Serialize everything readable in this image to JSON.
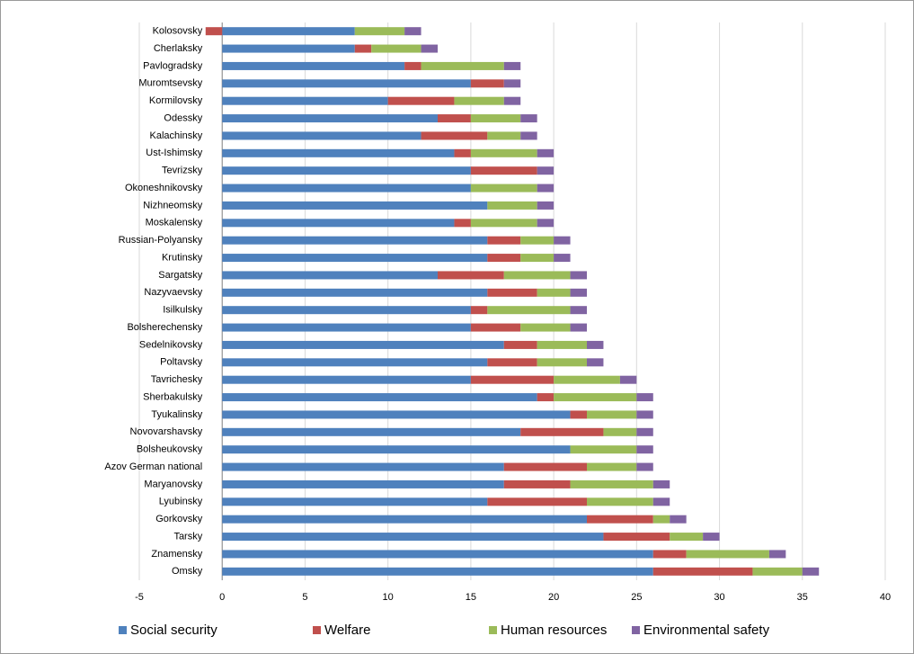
{
  "chart_data": {
    "type": "stacked-bar-horizontal",
    "categories": [
      "Kolosovsky",
      "Cherlaksky",
      "Pavlogradsky",
      "Muromtsevsky",
      "Kormilovsky",
      "Odessky",
      "Kalachinsky",
      "Ust-Ishimsky",
      "Tevrizsky",
      "Okoneshnikovsky",
      "Nizhneomsky",
      "Moskalensky",
      "Russian-Polyansky",
      "Krutinsky",
      "Sargatsky",
      "Nazyvaevsky",
      "Isilkulsky",
      "Bolsherechensky",
      "Sedelnikovsky",
      "Poltavsky",
      "Tavrichesky",
      "Sherbakulsky",
      "Tyukalinsky",
      "Novovarshavsky",
      "Bolsheukovsky",
      "Azov German national",
      "Maryanovsky",
      "Lyubinsky",
      "Gorkovsky",
      "Tarsky",
      "Znamensky",
      "Omsky"
    ],
    "series": [
      {
        "name": "Social security",
        "color": "#4f81bd",
        "values": [
          8,
          8,
          11,
          15,
          10,
          13,
          12,
          14,
          15,
          15,
          16,
          14,
          16,
          16,
          13,
          16,
          15,
          15,
          17,
          16,
          15,
          19,
          21,
          18,
          21,
          17,
          17,
          16,
          22,
          23,
          26,
          26
        ]
      },
      {
        "name": "Welfare",
        "color": "#c0504d",
        "values": [
          -1,
          1,
          1,
          2,
          4,
          2,
          4,
          1,
          4,
          0,
          0,
          1,
          2,
          2,
          4,
          3,
          1,
          3,
          2,
          3,
          5,
          1,
          1,
          5,
          0,
          5,
          4,
          6,
          4,
          4,
          2,
          6
        ]
      },
      {
        "name": "Human resources",
        "color": "#9bbb59",
        "values": [
          3,
          3,
          5,
          0,
          3,
          3,
          2,
          4,
          0,
          4,
          3,
          4,
          2,
          2,
          4,
          2,
          5,
          3,
          3,
          3,
          4,
          5,
          3,
          2,
          4,
          3,
          5,
          4,
          1,
          2,
          5,
          3
        ]
      },
      {
        "name": "Environmental safety",
        "color": "#8064a2",
        "values": [
          1,
          1,
          1,
          1,
          1,
          1,
          1,
          1,
          1,
          1,
          1,
          1,
          1,
          1,
          1,
          1,
          1,
          1,
          1,
          1,
          1,
          1,
          1,
          1,
          1,
          1,
          1,
          1,
          1,
          1,
          1,
          1
        ]
      }
    ],
    "xlim": [
      -5,
      40
    ],
    "xticks": [
      -5,
      0,
      5,
      10,
      15,
      20,
      25,
      30,
      35,
      40
    ],
    "grid": true,
    "legend": "bottom"
  }
}
